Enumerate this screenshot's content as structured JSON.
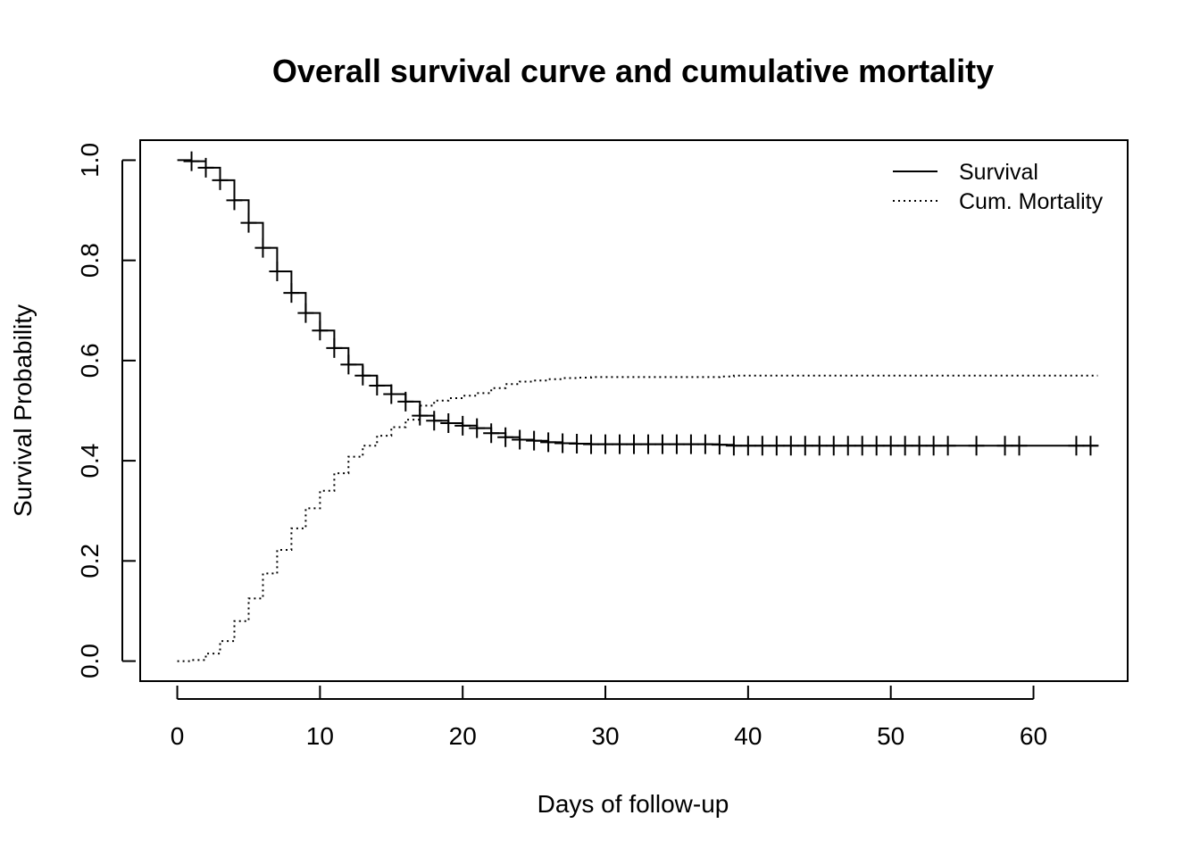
{
  "chart_data": {
    "type": "line",
    "title": "Overall survival curve and cumulative mortality",
    "xlabel": "Days of follow-up",
    "ylabel": "Survival Probability",
    "xlim": [
      -2.6,
      66.6
    ],
    "ylim": [
      -0.04,
      1.04
    ],
    "x_ticks": [
      0,
      10,
      20,
      30,
      40,
      50,
      60
    ],
    "x_tick_labels": [
      "0",
      "10",
      "20",
      "30",
      "40",
      "50",
      "60"
    ],
    "y_ticks": [
      0.0,
      0.2,
      0.4,
      0.6,
      0.8,
      1.0
    ],
    "y_tick_labels": [
      "0.0",
      "0.2",
      "0.4",
      "0.6",
      "0.8",
      "1.0"
    ],
    "grid": false,
    "legend_position": "top-right",
    "step": true,
    "series": [
      {
        "name": "Survival",
        "style": "solid",
        "x": [
          0,
          1,
          2,
          3,
          4,
          5,
          6,
          7,
          8,
          9,
          10,
          11,
          12,
          13,
          14,
          15,
          16,
          17,
          18,
          19,
          20,
          21,
          22,
          23,
          24,
          25,
          26,
          27,
          28,
          29,
          30,
          38,
          39,
          64.5
        ],
        "y": [
          1.0,
          0.998,
          0.985,
          0.96,
          0.92,
          0.875,
          0.825,
          0.778,
          0.735,
          0.695,
          0.66,
          0.625,
          0.592,
          0.57,
          0.55,
          0.533,
          0.518,
          0.49,
          0.48,
          0.475,
          0.47,
          0.465,
          0.455,
          0.447,
          0.442,
          0.44,
          0.437,
          0.435,
          0.434,
          0.433,
          0.433,
          0.432,
          0.43,
          0.43
        ],
        "censor_times": [
          1,
          2,
          3,
          4,
          5,
          6,
          7,
          8,
          9,
          10,
          11,
          12,
          13,
          14,
          15,
          16,
          17,
          18,
          19,
          20,
          21,
          22,
          23,
          24,
          25,
          26,
          27,
          28,
          29,
          30,
          31,
          32,
          33,
          34,
          35,
          36,
          37,
          38,
          39,
          40,
          41,
          42,
          43,
          44,
          45,
          46,
          47,
          48,
          49,
          50,
          51,
          52,
          53,
          54,
          56,
          58,
          59,
          63,
          64
        ]
      },
      {
        "name": "Cum. Mortality",
        "style": "dotted",
        "x": [
          0,
          1,
          2,
          3,
          4,
          5,
          6,
          7,
          8,
          9,
          10,
          11,
          12,
          13,
          14,
          15,
          16,
          17,
          18,
          19,
          20,
          21,
          22,
          23,
          24,
          25,
          26,
          27,
          28,
          29,
          30,
          38,
          39,
          64.5
        ],
        "y": [
          0.0,
          0.002,
          0.015,
          0.04,
          0.08,
          0.125,
          0.175,
          0.222,
          0.265,
          0.305,
          0.34,
          0.375,
          0.408,
          0.43,
          0.45,
          0.467,
          0.482,
          0.51,
          0.52,
          0.525,
          0.53,
          0.535,
          0.545,
          0.553,
          0.558,
          0.56,
          0.563,
          0.565,
          0.566,
          0.567,
          0.567,
          0.568,
          0.57,
          0.57
        ]
      }
    ]
  }
}
